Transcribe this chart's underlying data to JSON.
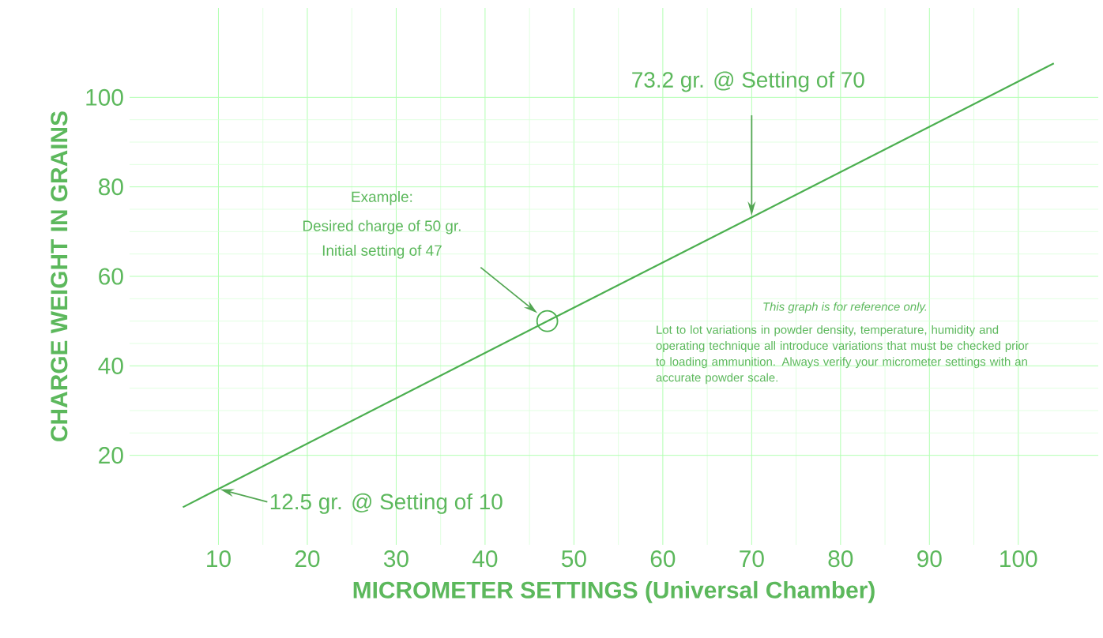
{
  "chart_data": {
    "type": "line",
    "xlabel": "MICROMETER SETTINGS      (Universal Chamber)",
    "ylabel": "CHARGE WEIGHT IN GRAINS",
    "series": [
      {
        "color": "#4caf50",
        "x": [
          6,
          10,
          47,
          70,
          104
        ],
        "values": [
          8.4,
          12.5,
          50,
          73.2,
          107.6
        ]
      },
      {
        "type": "scatter",
        "marker": "circle",
        "color": "#4caf50",
        "x": [
          47
        ],
        "values": [
          50
        ]
      }
    ],
    "xlim": [
      0,
      109
    ],
    "ylim": [
      0,
      120
    ],
    "xticks": [
      10,
      20,
      30,
      40,
      50,
      60,
      70,
      80,
      90,
      100
    ],
    "yticks": [
      20,
      40,
      60,
      80,
      100
    ],
    "grid": true,
    "annotations": [
      {
        "text": "73.2 gr. @ Setting of 70",
        "x": 70,
        "y": 73.2
      },
      {
        "text": "12.5 gr. @ Setting of 10",
        "x": 10,
        "y": 12.5
      },
      "Example:",
      "Desired charge of 50 gr.",
      "Initial setting of 47",
      "This graph is for reference only.",
      "Lot to lot variations in powder density, temperature, humidity and operating technique all introduce variations that must be checked prior to loading ammunition. Always verify your micrometer settings with an accurate powder scale."
    ]
  }
}
